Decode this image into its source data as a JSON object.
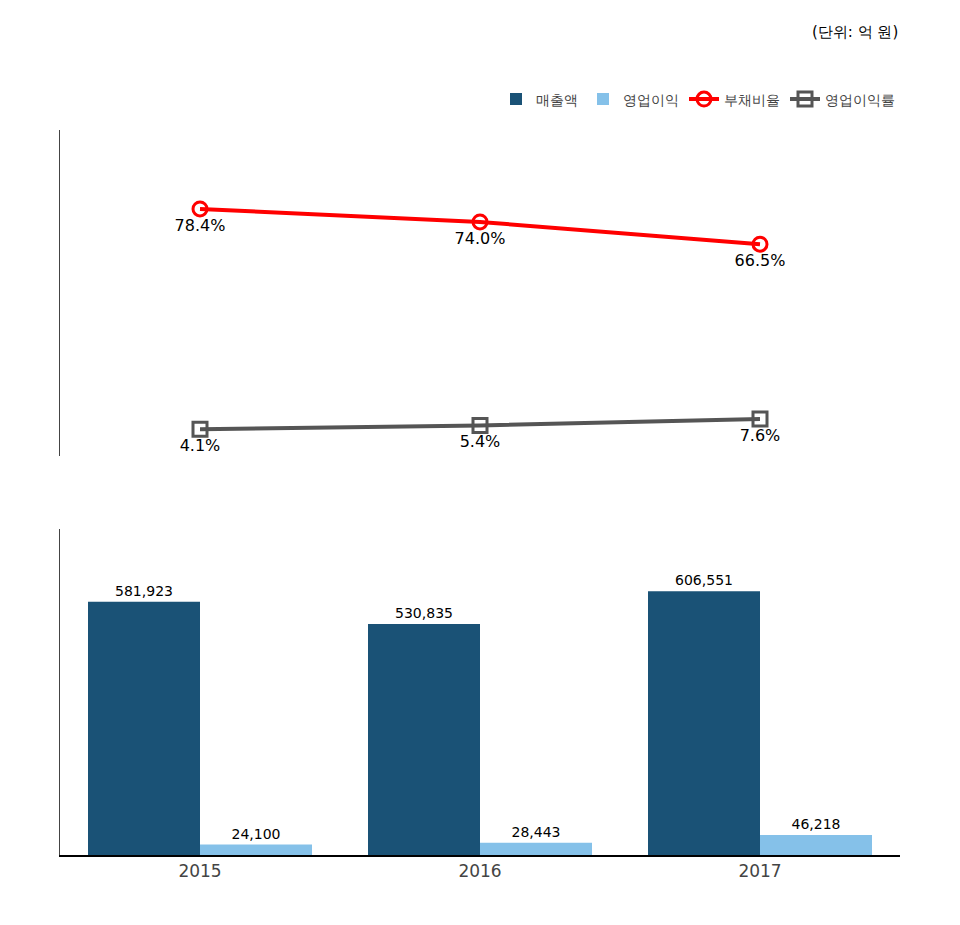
{
  "chart_data": {
    "type": "bar",
    "categories": [
      "2015",
      "2016",
      "2017"
    ],
    "ylim": [
      0,
      750000
    ],
    "y2lim": [
      -5,
      105
    ],
    "tick_labels": "x",
    "grid": false,
    "legend": "upper right",
    "data_labels": true,
    "annotations": [
      "(단위: 억 원)"
    ],
    "series": [
      {
        "name": "매출액",
        "type": "bar",
        "color": "#1a5276",
        "values": [
          581923,
          530835,
          606551
        ],
        "value_labels": [
          "581,923",
          "530,835",
          "606,551"
        ]
      },
      {
        "name": "영업이익",
        "type": "bar",
        "color": "#85c1e9",
        "values": [
          24100,
          28443,
          46218
        ],
        "value_labels": [
          "24,100",
          "28,443",
          "46,218"
        ]
      },
      {
        "name": "부채비율",
        "type": "line",
        "axis": "y2",
        "color": "#ff0000",
        "marker": "circle",
        "values": [
          78.4,
          74.0,
          66.5
        ],
        "value_labels": [
          "78.4%",
          "74.0%",
          "66.5%"
        ]
      },
      {
        "name": "영업이익률",
        "type": "line",
        "axis": "y2",
        "color": "#555555",
        "marker": "square",
        "values": [
          4.1,
          5.4,
          7.6
        ],
        "value_labels": [
          "4.1%",
          "5.4%",
          "7.6%"
        ]
      }
    ]
  }
}
